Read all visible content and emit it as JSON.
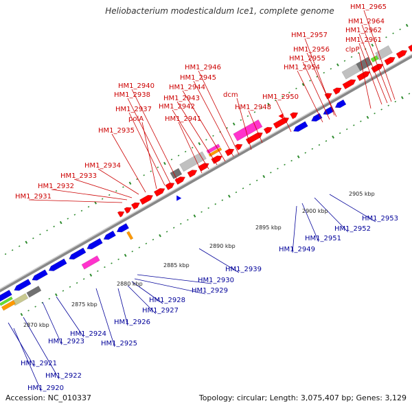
{
  "title": "Heliobacterium modesticaldum Ice1, complete genome",
  "footer": {
    "accession": "Accession: NC_010337",
    "summary": "Topology: circular; Length: 3,075,407 bp; Genes: 3,129"
  },
  "colors": {
    "forward_label": "#cc0000",
    "reverse_label": "#000099",
    "forward_gene": "#ff0000",
    "reverse_gene": "#0000ee",
    "backbone": "#888888",
    "tick": "#2e8b2e",
    "pseudo_gray": "#c0c0c0",
    "dark_gray": "#707070",
    "orange": "#ff9900",
    "magenta": "#ff33cc",
    "olive": "#c8c890",
    "green": "#66dd33"
  },
  "scale_labels": [
    "2870 kbp",
    "2875 kbp",
    "2880 kbp",
    "2885 kbp",
    "2890 kbp",
    "2895 kbp",
    "2900 kbp",
    "2905 kbp"
  ],
  "forward_labels": [
    "HM1_2965",
    "HM1_2964",
    "HM1_2962",
    "HM1_2961",
    "clpP",
    "HM1_2957",
    "HM1_2956",
    "HM1_2955",
    "HM1_2954",
    "HM1_2950",
    "HM1_2948",
    "dcm",
    "HM1_2946",
    "HM1_2945",
    "HM1_2944",
    "HM1_2943",
    "HM1_2942",
    "HM1_2941",
    "HM1_2940",
    "HM1_2938",
    "HM1_2937",
    "polA",
    "HM1_2935",
    "HM1_2934",
    "HM1_2933",
    "HM1_2932",
    "HM1_2931"
  ],
  "reverse_labels": [
    "HM1_2953",
    "HM1_2952",
    "HM1_2951",
    "HM1_2949",
    "HM1_2939",
    "HM1_2930",
    "HM1_2929",
    "HM1_2928",
    "HM1_2927",
    "HM1_2926",
    "HM1_2925",
    "HM1_2924",
    "HM1_2923",
    "HM1_2922",
    "HM1_2921",
    "HM1_2920"
  ]
}
